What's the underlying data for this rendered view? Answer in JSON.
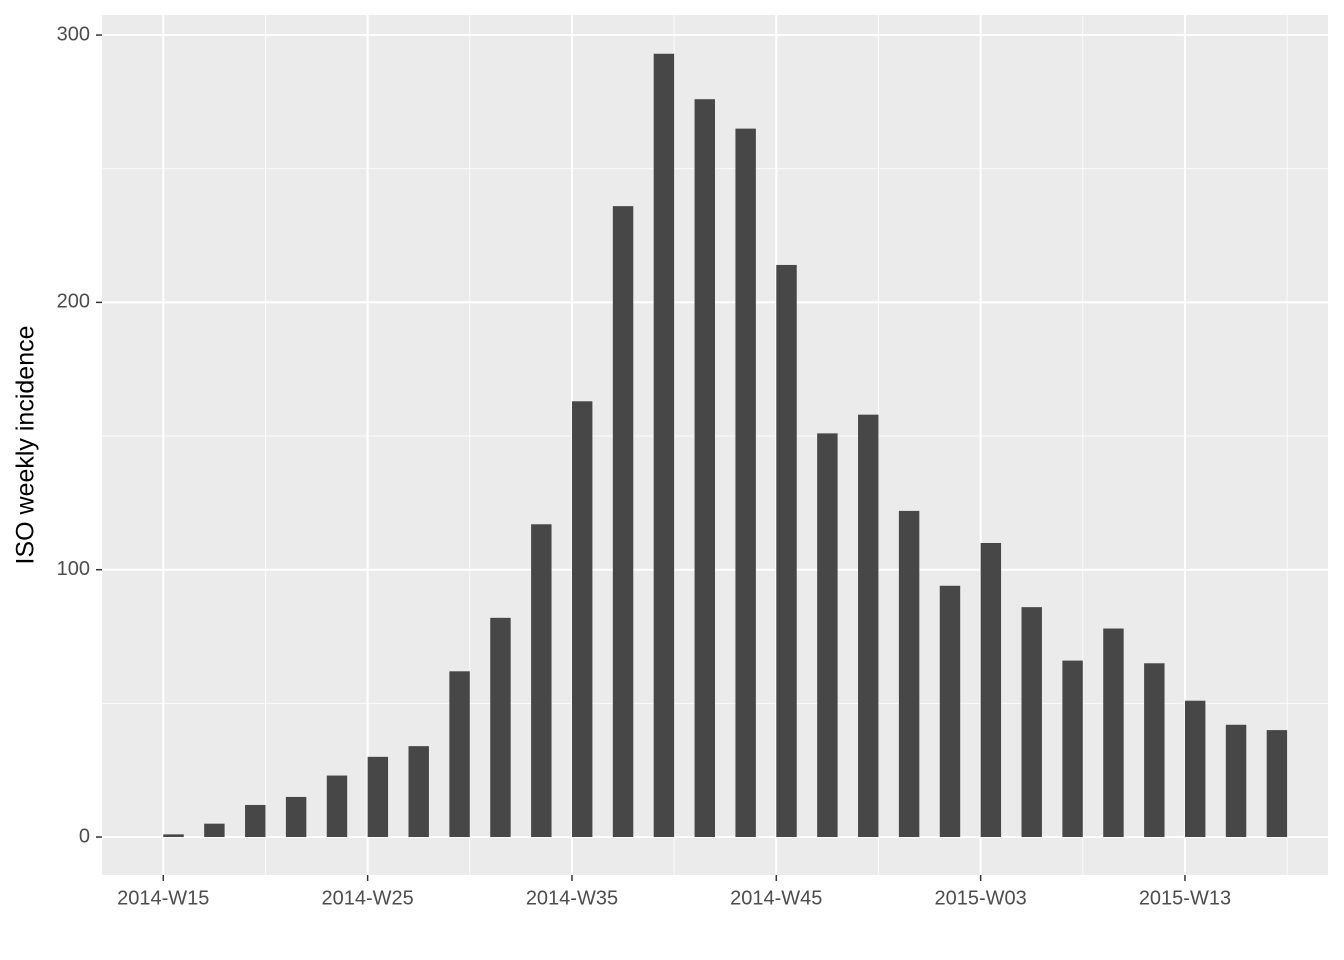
{
  "chart_data": {
    "type": "bar",
    "y_label": "ISO weekly incidence",
    "x": [
      "2014-W15",
      "2014-W17",
      "2014-W19",
      "2014-W21",
      "2014-W23",
      "2014-W25",
      "2014-W27",
      "2014-W29",
      "2014-W31",
      "2014-W33",
      "2014-W35",
      "2014-W37",
      "2014-W39",
      "2014-W41",
      "2014-W43",
      "2014-W45",
      "2014-W47",
      "2014-W49",
      "2014-W51",
      "2015-W01",
      "2015-W03",
      "2015-W05",
      "2015-W07",
      "2015-W09",
      "2015-W11",
      "2015-W13",
      "2015-W15",
      "2015-W17"
    ],
    "values": [
      1,
      5,
      12,
      15,
      23,
      30,
      34,
      62,
      82,
      117,
      163,
      236,
      293,
      276,
      265,
      214,
      151,
      158,
      122,
      94,
      110,
      86,
      66,
      78,
      65,
      51,
      42,
      40
    ],
    "color": "#474747",
    "xlim": [
      "2014-W12",
      "2015-W20"
    ],
    "xticks": [
      "2014-W15",
      "2014-W25",
      "2014-W35",
      "2014-W45",
      "2015-W03",
      "2015-W13"
    ],
    "ylim": [
      -14.2,
      307.5
    ],
    "yticks": [
      0,
      100,
      200,
      300
    ],
    "grid": true
  }
}
